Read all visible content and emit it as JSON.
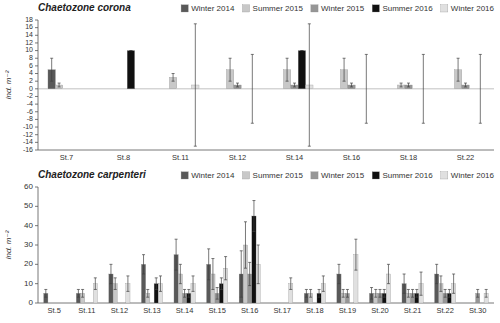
{
  "chart_data": [
    {
      "type": "bar",
      "title": "Chaetozone corona",
      "categories": [
        "St.7",
        "St.8",
        "St.11",
        "St.12",
        "St.14",
        "St.16",
        "St.18",
        "St.22"
      ],
      "ylabel": "ind. m⁻²",
      "ylim": [
        -16,
        18
      ],
      "yticks": [
        -16,
        -14,
        -12,
        -10,
        -8,
        -6,
        -4,
        -2,
        0,
        2,
        4,
        6,
        8,
        10,
        12,
        14,
        16,
        18
      ],
      "grid": false,
      "legend": "top",
      "series": [
        {
          "name": "Winter 2014",
          "color": "#595959",
          "values": [
            5,
            0,
            0,
            0,
            0,
            0,
            0,
            0
          ],
          "errors": [
            3,
            0,
            0,
            0,
            0,
            0,
            0,
            0
          ]
        },
        {
          "name": "Summer 2015",
          "color": "#c8c8c8",
          "values": [
            1,
            0,
            3,
            5,
            5,
            5,
            1,
            5
          ],
          "errors": [
            0.5,
            0,
            1,
            3,
            3,
            3,
            0.5,
            3
          ]
        },
        {
          "name": "Winter 2015",
          "color": "#969696",
          "values": [
            0,
            0,
            0,
            1,
            1,
            1,
            1,
            1
          ],
          "errors": [
            0,
            0,
            0,
            0.5,
            0.5,
            0.5,
            0.5,
            0.5
          ]
        },
        {
          "name": "Summer 2016",
          "color": "#101010",
          "values": [
            0,
            10,
            0,
            0,
            10,
            0,
            0,
            0
          ],
          "errors": [
            0,
            0,
            0,
            0,
            0,
            0,
            0,
            0
          ]
        },
        {
          "name": "Winter 2016",
          "color": "#e0e0e0",
          "values": [
            0,
            0,
            1,
            0,
            1,
            0,
            0,
            0
          ],
          "errors": [
            0,
            0,
            16,
            9,
            16,
            9,
            9,
            9
          ]
        }
      ]
    },
    {
      "type": "bar",
      "title": "Chaetozone carpenteri",
      "categories": [
        "St.5",
        "St.11",
        "St.12",
        "St.13",
        "St.14",
        "St.15",
        "St.16",
        "St.17",
        "St.18",
        "St.19",
        "St.20",
        "St.21",
        "St.22",
        "St.30"
      ],
      "ylabel": "ind. m⁻²",
      "ylim": [
        0,
        60
      ],
      "yticks": [
        0,
        10,
        20,
        30,
        40,
        50,
        60
      ],
      "grid": false,
      "legend": "top",
      "series": [
        {
          "name": "Winter 2014",
          "color": "#595959",
          "values": [
            5,
            5,
            15,
            20,
            25,
            20,
            15,
            0,
            5,
            15,
            5,
            10,
            15,
            0
          ],
          "errors": [
            2,
            2,
            5,
            5,
            8,
            8,
            12,
            0,
            2,
            5,
            3,
            5,
            5,
            0
          ]
        },
        {
          "name": "Summer 2015",
          "color": "#c8c8c8",
          "values": [
            0,
            5,
            10,
            5,
            15,
            15,
            30,
            0,
            5,
            5,
            5,
            5,
            10,
            0
          ],
          "errors": [
            0,
            2,
            3,
            2,
            5,
            8,
            12,
            0,
            2,
            2,
            2,
            2,
            4,
            0
          ]
        },
        {
          "name": "Winter 2015",
          "color": "#969696",
          "values": [
            0,
            0,
            0,
            0,
            5,
            5,
            15,
            0,
            0,
            5,
            5,
            5,
            5,
            5
          ],
          "errors": [
            0,
            0,
            0,
            0,
            2,
            3,
            6,
            0,
            0,
            2,
            2,
            2,
            2,
            2
          ]
        },
        {
          "name": "Summer 2016",
          "color": "#101010",
          "values": [
            0,
            0,
            0,
            10,
            5,
            10,
            45,
            0,
            5,
            0,
            5,
            5,
            5,
            0
          ],
          "errors": [
            0,
            0,
            0,
            3,
            2,
            3,
            8,
            0,
            2,
            0,
            2,
            2,
            2,
            0
          ]
        },
        {
          "name": "Winter 2016",
          "color": "#e0e0e0",
          "values": [
            0,
            10,
            10,
            10,
            10,
            18,
            20,
            10,
            10,
            25,
            15,
            10,
            10,
            5
          ],
          "errors": [
            0,
            3,
            4,
            4,
            4,
            6,
            10,
            3,
            4,
            8,
            5,
            6,
            5,
            2
          ]
        }
      ]
    }
  ]
}
